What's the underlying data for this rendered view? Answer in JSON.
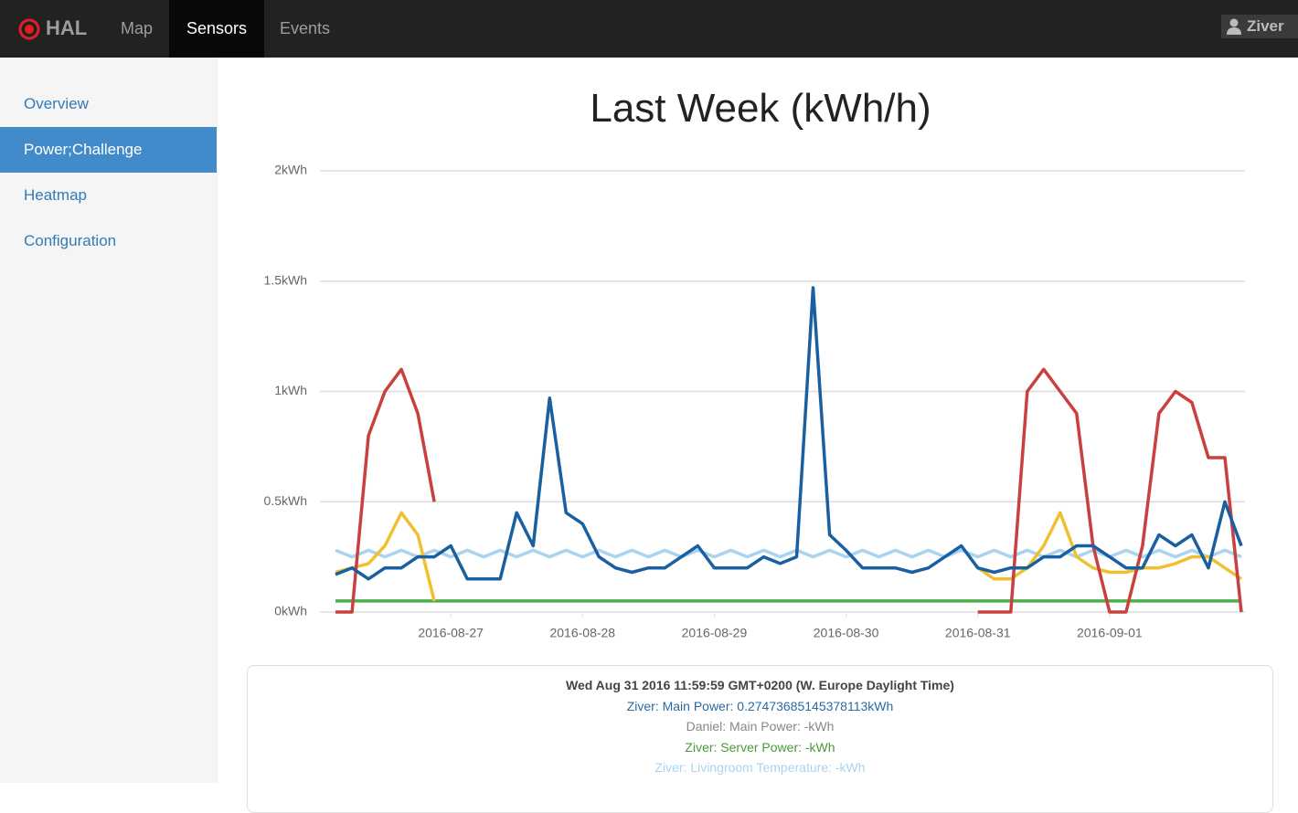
{
  "navbar": {
    "brand": "HAL",
    "items": [
      "Map",
      "Sensors",
      "Events"
    ],
    "user": "Ziver"
  },
  "sidebar": {
    "items": [
      "Overview",
      "Power;Challenge",
      "Heatmap",
      "Configuration"
    ]
  },
  "chart_data": {
    "type": "line",
    "title": "Last Week (kWh/h)",
    "x": [
      0.125,
      0.25,
      0.375,
      0.5,
      0.625,
      0.75,
      0.875,
      1,
      1.125,
      1.25,
      1.375,
      1.5,
      1.625,
      1.75,
      1.875,
      2,
      2.125,
      2.25,
      2.375,
      2.5,
      2.625,
      2.75,
      2.875,
      3,
      3.125,
      3.25,
      3.375,
      3.5,
      3.625,
      3.75,
      3.875,
      4,
      4.125,
      4.25,
      4.375,
      4.5,
      4.625,
      4.75,
      4.875,
      5,
      5.125,
      5.25,
      5.375,
      5.5,
      5.625,
      5.75,
      5.875,
      6,
      6.125,
      6.25,
      6.375,
      6.5,
      6.625,
      6.75,
      6.875,
      7
    ],
    "xlim": [
      0.09,
      7.0
    ],
    "xticks": [
      {
        "value": 1,
        "label": "2016-08-27"
      },
      {
        "value": 2,
        "label": "2016-08-28"
      },
      {
        "value": 3,
        "label": "2016-08-29"
      },
      {
        "value": 4,
        "label": "2016-08-30"
      },
      {
        "value": 5,
        "label": "2016-08-31"
      },
      {
        "value": 6,
        "label": "2016-09-01"
      }
    ],
    "ylim": [
      0,
      2
    ],
    "yticks": [
      {
        "value": 0,
        "label": "0kWh"
      },
      {
        "value": 0.5,
        "label": "0.5kWh"
      },
      {
        "value": 1,
        "label": "1kWh"
      },
      {
        "value": 1.5,
        "label": "1.5kWh"
      },
      {
        "value": 2,
        "label": "2kWh"
      }
    ],
    "grid": true,
    "series": [
      {
        "color": "#a8d4f0",
        "values": [
          0.28,
          0.25,
          0.28,
          0.25,
          0.28,
          0.25,
          0.28,
          0.25,
          0.28,
          0.25,
          0.28,
          0.25,
          0.28,
          0.25,
          0.28,
          0.25,
          0.28,
          0.25,
          0.28,
          0.25,
          0.28,
          0.25,
          0.28,
          0.25,
          0.28,
          0.25,
          0.28,
          0.25,
          0.28,
          0.25,
          0.28,
          0.25,
          0.28,
          0.25,
          0.28,
          0.25,
          0.28,
          0.25,
          0.28,
          0.25,
          0.28,
          0.25,
          0.28,
          0.25,
          0.28,
          0.25,
          0.28,
          0.25,
          0.28,
          0.25,
          0.28,
          0.25,
          0.28,
          0.25,
          0.28,
          0.25
        ]
      },
      {
        "color": "#4cae4c",
        "values": [
          0.05,
          0.05,
          0.05,
          0.05,
          0.05,
          0.05,
          0.05,
          0.05,
          0.05,
          0.05,
          0.05,
          0.05,
          0.05,
          0.05,
          0.05,
          0.05,
          0.05,
          0.05,
          0.05,
          0.05,
          0.05,
          0.05,
          0.05,
          0.05,
          0.05,
          0.05,
          0.05,
          0.05,
          0.05,
          0.05,
          0.05,
          0.05,
          0.05,
          0.05,
          0.05,
          0.05,
          0.05,
          0.05,
          0.05,
          0.05,
          0.05,
          0.05,
          0.05,
          0.05,
          0.05,
          0.05,
          0.05,
          0.05,
          0.05,
          0.05,
          0.05,
          0.05,
          0.05,
          0.05,
          0.05,
          0.05
        ]
      },
      {
        "color": "#f0c030",
        "values": [
          0.18,
          0.2,
          0.22,
          0.3,
          0.45,
          0.35,
          0.05,
          null,
          null,
          null,
          null,
          null,
          null,
          null,
          null,
          null,
          null,
          null,
          null,
          null,
          null,
          null,
          null,
          null,
          null,
          null,
          null,
          null,
          null,
          null,
          null,
          null,
          null,
          null,
          null,
          null,
          null,
          null,
          null,
          0.2,
          0.15,
          0.15,
          0.2,
          0.3,
          0.45,
          0.25,
          0.2,
          0.18,
          0.18,
          0.2,
          0.2,
          0.22,
          0.25,
          0.25,
          0.2,
          0.15
        ]
      },
      {
        "color": "#c9403f",
        "values": [
          0,
          0,
          0.8,
          1.0,
          1.1,
          0.9,
          0.5,
          null,
          null,
          null,
          null,
          null,
          null,
          null,
          null,
          null,
          null,
          null,
          null,
          null,
          null,
          null,
          null,
          null,
          null,
          null,
          null,
          null,
          null,
          null,
          null,
          null,
          null,
          null,
          null,
          null,
          null,
          null,
          null,
          0,
          0,
          0,
          1.0,
          1.1,
          1.0,
          0.9,
          0.3,
          0,
          0,
          0.3,
          0.9,
          1.0,
          0.95,
          0.7,
          0.7,
          0
        ]
      },
      {
        "color": "#1a5fa0",
        "values": [
          0.17,
          0.2,
          0.15,
          0.2,
          0.2,
          0.25,
          0.25,
          0.3,
          0.15,
          0.15,
          0.15,
          0.45,
          0.3,
          0.97,
          0.45,
          0.4,
          0.25,
          0.2,
          0.18,
          0.2,
          0.2,
          0.25,
          0.3,
          0.2,
          0.2,
          0.2,
          0.25,
          0.22,
          0.25,
          1.47,
          0.35,
          0.28,
          0.2,
          0.2,
          0.2,
          0.18,
          0.2,
          0.25,
          0.3,
          0.2,
          0.18,
          0.2,
          0.2,
          0.25,
          0.25,
          0.3,
          0.3,
          0.25,
          0.2,
          0.2,
          0.35,
          0.3,
          0.35,
          0.2,
          0.5,
          0.3
        ]
      }
    ]
  },
  "tooltip": {
    "title": "Wed Aug 31 2016 11:59:59 GMT+0200 (W. Europe Daylight Time)",
    "lines": [
      "Ziver: Main Power: 0.27473685145378113kWh",
      "Daniel: Main Power: -kWh",
      "Ziver: Server Power: -kWh",
      "Ziver: Livingroom Temperature: -kWh"
    ]
  }
}
